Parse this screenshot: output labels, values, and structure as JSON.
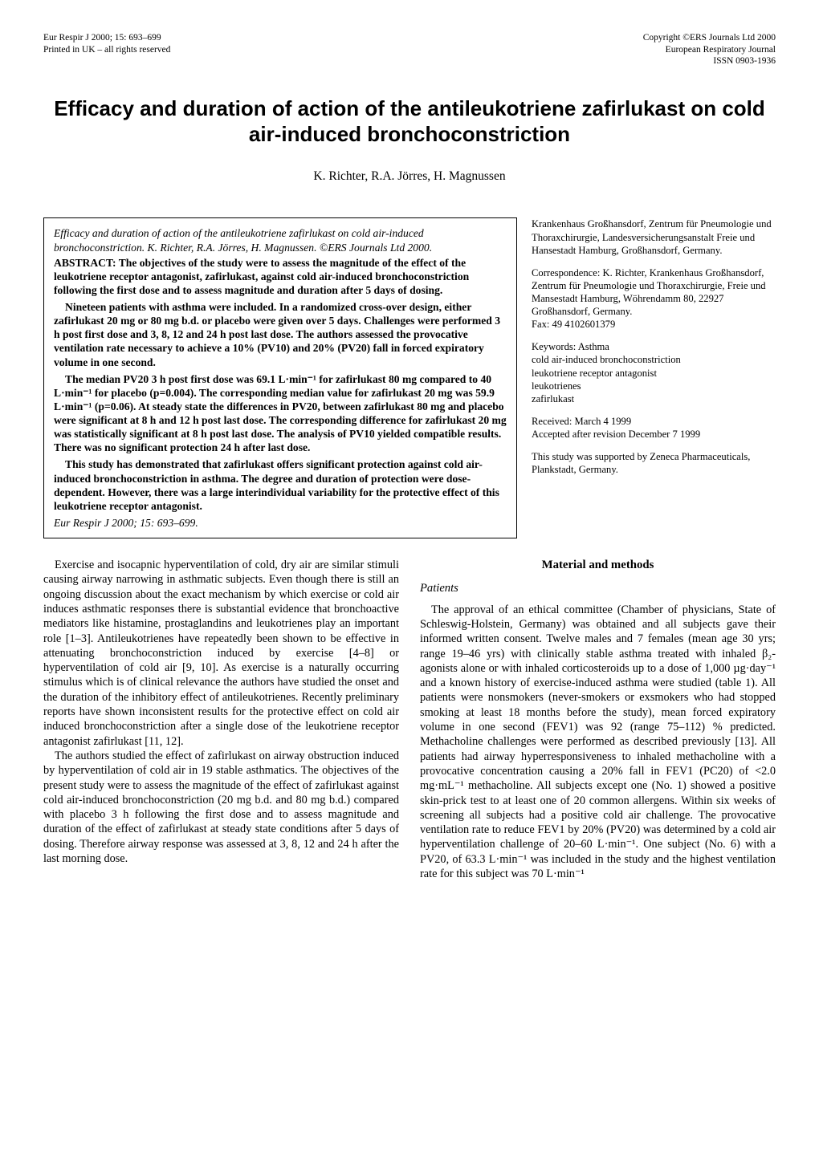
{
  "header": {
    "left_line1": "Eur Respir J 2000; 15: 693–699",
    "left_line2": "Printed in UK – all rights reserved",
    "right_line1": "Copyright ©ERS Journals Ltd 2000",
    "right_line2": "European Respiratory Journal",
    "right_line3": "ISSN 0903-1936"
  },
  "title": "Efficacy and duration of action of the antileukotriene zafirlukast on cold air-induced bronchoconstriction",
  "authors": "K. Richter, R.A. Jörres, H. Magnussen",
  "abstract": {
    "cite": "Efficacy and duration of action of the antileukotriene zafirlukast on cold air-induced bronchoconstriction. K. Richter, R.A. Jörres, H. Magnussen. ©ERS Journals Ltd 2000.",
    "p1": "ABSTRACT: The objectives of the study were to assess the magnitude of the effect of the leukotriene receptor antagonist, zafirlukast, against cold air-induced bronchoconstriction following the first dose and to assess magnitude and duration after 5 days of dosing.",
    "p2": "Nineteen patients with asthma were included. In a randomized cross-over design, either zafirlukast 20 mg or 80 mg b.d. or placebo were given over 5 days. Challenges were performed 3 h post first dose and 3, 8, 12 and 24 h post last dose. The authors assessed the provocative ventilation rate necessary to achieve a 10% (PV10) and 20% (PV20) fall in forced expiratory volume in one second.",
    "p3": "The median PV20 3 h post first dose was 69.1 L·min⁻¹ for zafirlukast 80 mg compared to 40 L·min⁻¹ for placebo (p=0.004). The corresponding median value for zafirlukast 20 mg was 59.9 L·min⁻¹ (p=0.06). At steady state the differences in PV20, between zafirlukast 80 mg and placebo were significant at 8 h and 12 h post last dose. The corresponding difference for zafirlukast 20 mg was statistically significant at 8 h post last dose. The analysis of PV10 yielded compatible results. There was no significant protection 24 h after last dose.",
    "p4": "This study has demonstrated that zafirlukast offers significant protection against cold air-induced bronchoconstriction in asthma. The degree and duration of protection were dose-dependent. However, there was a large interindividual variability for the protective effect of this leukotriene receptor antagonist.",
    "er": "Eur Respir J 2000; 15: 693–699."
  },
  "sidebar": {
    "affil": "Krankenhaus Großhansdorf, Zentrum für Pneumologie und Thoraxchirurgie, Landesversicherungsanstalt Freie und Hansestadt Hamburg, Großhansdorf, Germany.",
    "corr": "Correspondence: K. Richter, Krankenhaus Großhansdorf, Zentrum für Pneumologie und Thoraxchirurgie, Freie und Mansestadt Hamburg, Wöhrendamm 80, 22927 Großhansdorf, Germany.\nFax: 49 4102601379",
    "keywords": "Keywords: Asthma\ncold air-induced bronchoconstriction\nleukotriene receptor antagonist\nleukotrienes\nzafirlukast",
    "dates": "Received: March 4 1999\nAccepted after revision December 7 1999",
    "funding": "This study was supported by Zeneca Pharmaceuticals, Plankstadt, Germany."
  },
  "body": {
    "intro_p1": "Exercise and isocapnic hyperventilation of cold, dry air are similar stimuli causing airway narrowing in asthmatic subjects. Even though there is still an ongoing discussion about the exact mechanism by which exercise or cold air induces asthmatic responses there is substantial evidence that bronchoactive mediators like histamine, prostaglandins and leukotrienes play an important role [1–3]. Antileukotrienes have repeatedly been shown to be effective in attenuating bronchoconstriction induced by exercise [4–8] or hyperventilation of cold air [9, 10]. As exercise is a naturally occurring stimulus which is of clinical relevance the authors have studied the onset and the duration of the inhibitory effect of antileukotrienes. Recently preliminary reports have shown inconsistent results for the protective effect on cold air induced bronchoconstriction after a single dose of the leukotriene receptor antagonist zafirlukast [11, 12].",
    "intro_p2": "The authors studied the effect of zafirlukast on airway obstruction induced by hyperventilation of cold air in 19 stable asthmatics. The objectives of the present study were to assess the magnitude of the effect of zafirlukast against cold air-induced bronchoconstriction (20 mg b.d. and 80 mg b.d.) compared with placebo 3 h following the first dose and to assess magnitude and duration of the effect of zafirlukast at steady state conditions after 5 days of dosing. Therefore airway response was assessed at 3, 8, 12 and 24 h after the last morning dose.",
    "methods_head": "Material and methods",
    "patients_head": "Patients",
    "patients_p1": "The approval of an ethical committee (Chamber of physicians, State of Schleswig-Holstein, Germany) was obtained and all subjects gave their informed written consent. Twelve males and 7 females (mean age 30 yrs; range 19–46 yrs) with clinically stable asthma treated with inhaled β₂-agonists alone or with inhaled corticosteroids up to a dose of 1,000 µg·day⁻¹ and a known history of exercise-induced asthma were studied (table 1). All patients were nonsmokers (never-smokers or exsmokers who had stopped smoking at least 18 months before the study), mean forced expiratory volume in one second (FEV1) was 92 (range 75–112) % predicted. Methacholine challenges were performed as described previously [13]. All patients had airway hyperresponsiveness to inhaled methacholine with a provocative concentration causing a 20% fall in FEV1 (PC20) of <2.0 mg·mL⁻¹ methacholine. All subjects except one (No. 1) showed a positive skin-prick test to at least one of 20 common allergens. Within six weeks of screening all subjects had a positive cold air challenge. The provocative ventilation rate to reduce FEV1 by 20% (PV20) was determined by a cold air hyperventilation challenge of 20–60 L·min⁻¹. One subject (No. 6) with a PV20, of 63.3 L·min⁻¹ was included in the study and the highest ventilation rate for this subject was 70 L·min⁻¹"
  }
}
